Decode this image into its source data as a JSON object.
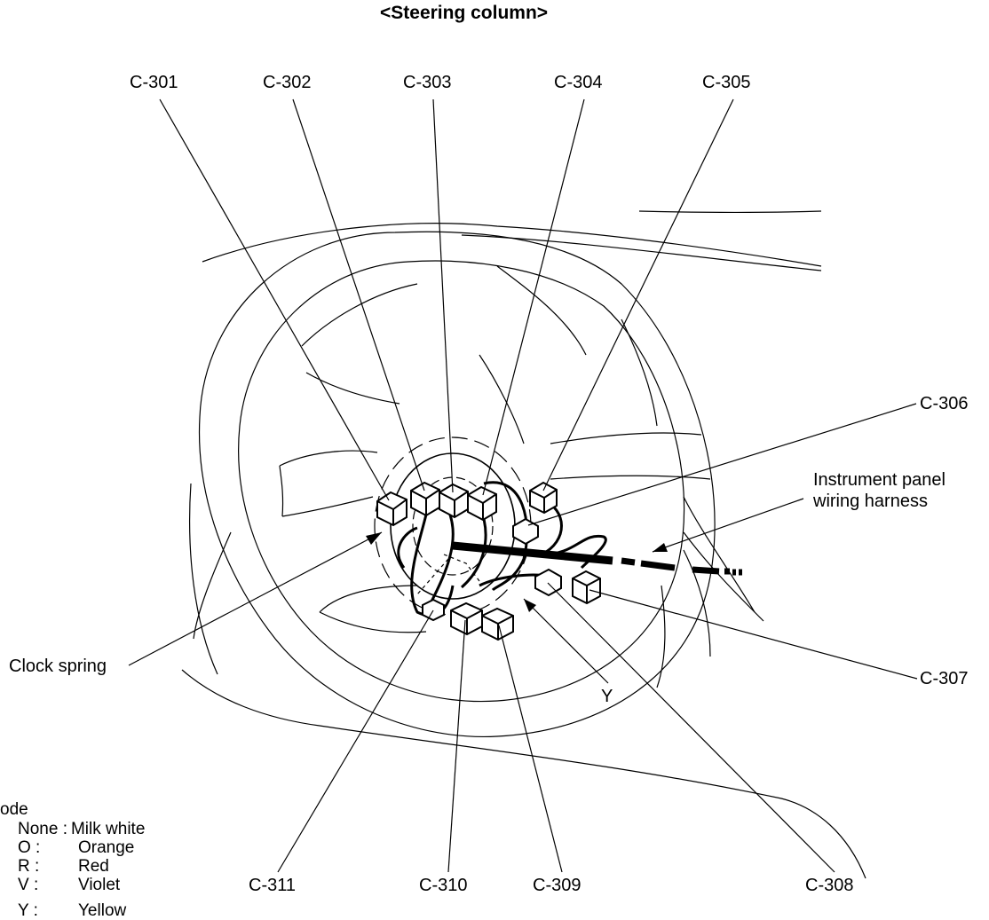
{
  "title": "<Steering column>",
  "callouts": {
    "c301": "C-301",
    "c302": "C-302",
    "c303": "C-303",
    "c304": "C-304",
    "c305": "C-305",
    "c306": "C-306",
    "c307": "C-307",
    "c308": "C-308",
    "c309": "C-309",
    "c310": "C-310",
    "c311": "C-311",
    "clock_spring": "Clock spring",
    "harness_line1": "Instrument panel",
    "harness_line2": "wiring harness",
    "y_marker": "Y"
  },
  "legend": {
    "heading": "ode",
    "rows": [
      {
        "code": "None :",
        "color": "Milk white"
      },
      {
        "code": "O :",
        "color": "Orange"
      },
      {
        "code": "R :",
        "color": "Red"
      },
      {
        "code": "V :",
        "color": "Violet"
      },
      {
        "code": "Y :",
        "color": "Yellow"
      }
    ]
  }
}
